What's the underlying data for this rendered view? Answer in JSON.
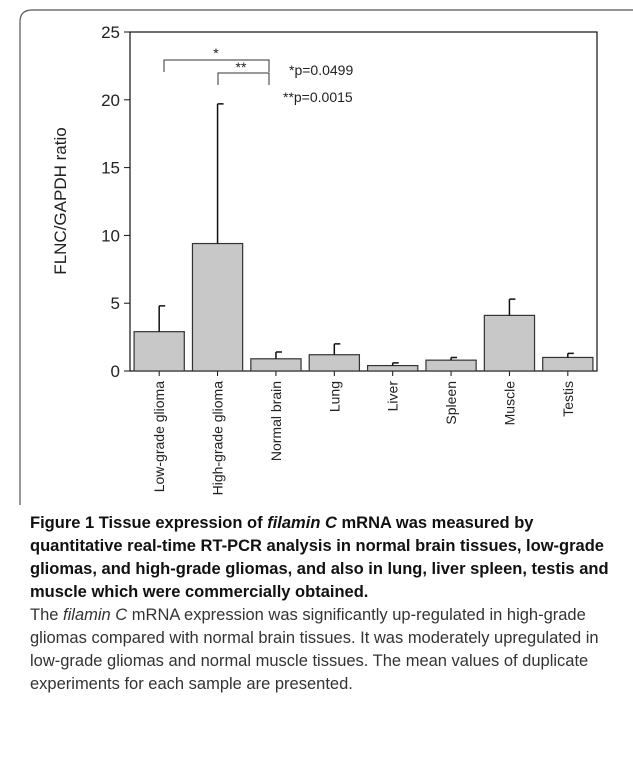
{
  "chart_data": {
    "type": "bar",
    "y_label": "FLNC/GAPDH ratio",
    "categories": [
      "Low-grade glioma",
      "High-grade glioma",
      "Normal brain",
      "Lung",
      "Liver",
      "Spleen",
      "Muscle",
      "Testis"
    ],
    "values": [
      2.9,
      9.4,
      0.9,
      1.2,
      0.4,
      0.8,
      4.1,
      1.0
    ],
    "errors": [
      1.9,
      10.3,
      0.5,
      0.8,
      0.2,
      0.2,
      1.2,
      0.3
    ],
    "color": "#c8c8c8",
    "ylim": [
      0,
      25
    ],
    "yticks": [
      0,
      5,
      10,
      15,
      20,
      25
    ],
    "annotations": [
      "*",
      "**",
      "*p=0.0499",
      "**p=0.0015"
    ]
  },
  "caption": {
    "label": "Figure 1",
    "title_parts": [
      "Tissue expression of ",
      "filamin C",
      " mRNA was measured by quantitative real-time RT-PCR analysis in normal brain tissues, low-grade gliomas, and high-grade gliomas, and also in lung, liver spleen, testis and muscle which were commercially obtained."
    ],
    "body_parts": [
      "The ",
      "filamin C",
      " mRNA expression was significantly up-regulated in high-grade gliomas compared with normal brain tissues. It was moderately upregulated in low-grade gliomas and normal muscle tissues. The mean values of duplicate experiments for each sample are presented."
    ]
  }
}
